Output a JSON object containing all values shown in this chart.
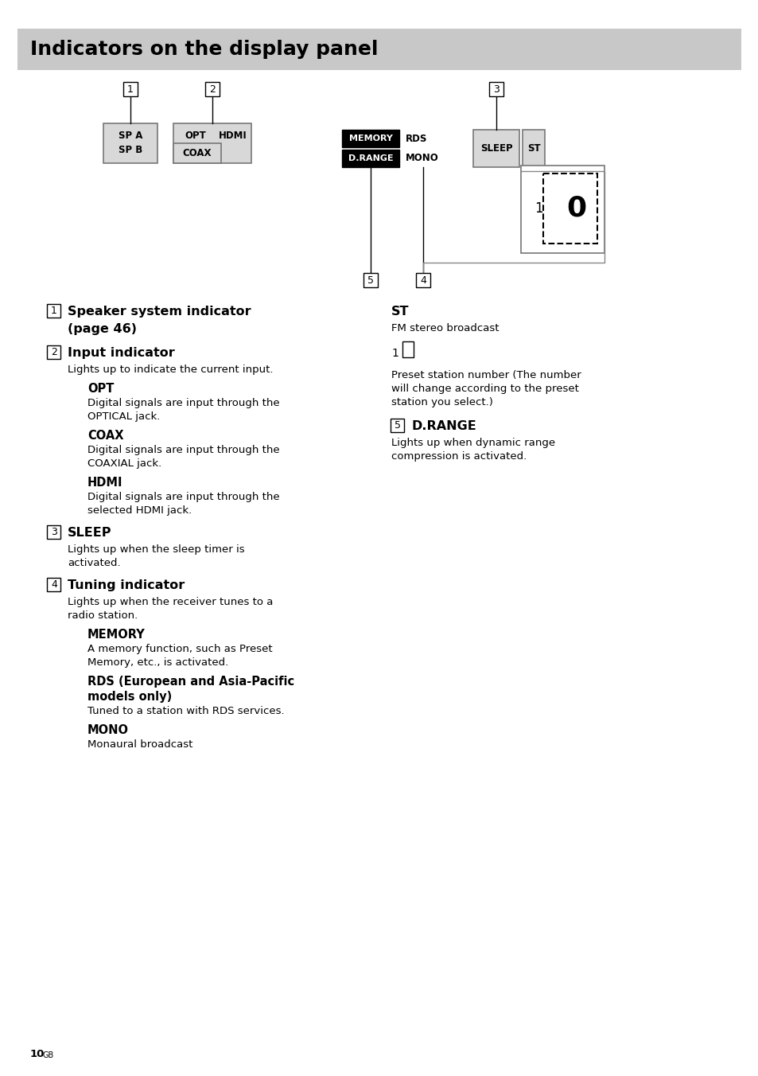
{
  "title": "Indicators on the display panel",
  "title_bg": "#c8c8c8",
  "bg_color": "#ffffff",
  "page_number": "10",
  "page_suffix": "GB"
}
